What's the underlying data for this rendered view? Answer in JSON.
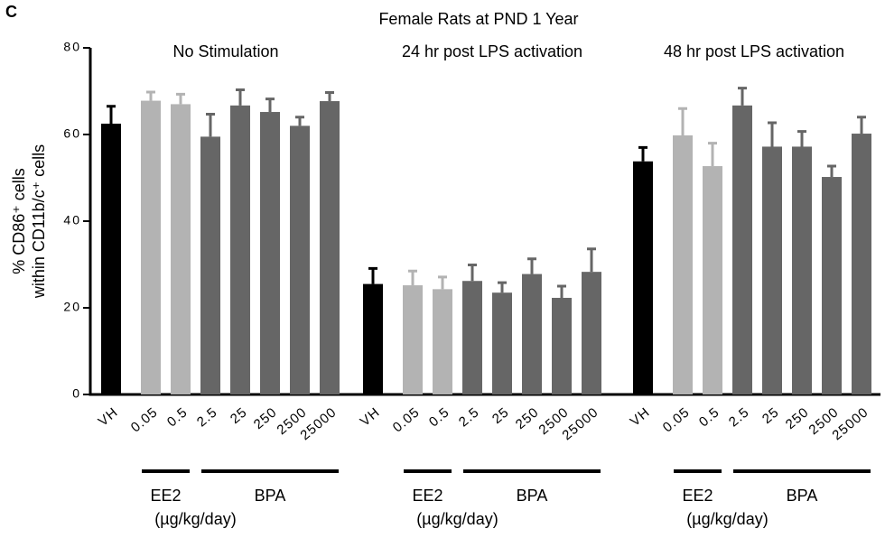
{
  "chart_data": {
    "type": "bar",
    "panel_label": "C",
    "title": "Female Rats at PND 1 Year",
    "y_label": [
      "% CD86⁺ cells",
      "within CD11b/c⁺ cells"
    ],
    "ylim": [
      0,
      80
    ],
    "yticks": [
      0,
      20,
      40,
      60,
      80
    ],
    "colors": [
      "#000000",
      "#b3b3b3",
      "#b3b3b3",
      "#666666",
      "#666666",
      "#666666",
      "#666666",
      "#666666"
    ],
    "categories": [
      "VH",
      "0.05",
      "0.5",
      "2.5",
      "25",
      "250",
      "2500",
      "25000"
    ],
    "bracket_labels": [
      "EE2",
      "BPA"
    ],
    "unit": "(µg/kg/day)",
    "groups": [
      {
        "title": "No Stimulation",
        "values": [
          62.5,
          67.8,
          67,
          59.5,
          66.7,
          65.2,
          62,
          67.7
        ],
        "errors": [
          4,
          2,
          2.3,
          5.2,
          3.6,
          3,
          2,
          2
        ]
      },
      {
        "title": "24 hr post LPS activation",
        "values": [
          25.5,
          25.2,
          24.3,
          26.2,
          23.5,
          27.8,
          22.3,
          28.3
        ],
        "errors": [
          3.6,
          3.3,
          2.8,
          3.7,
          2.3,
          3.5,
          2.7,
          5.3
        ]
      },
      {
        "title": "48 hr post LPS activation",
        "values": [
          53.8,
          59.8,
          52.7,
          66.7,
          57.2,
          57.2,
          50.2,
          60.2
        ],
        "errors": [
          3.2,
          6.2,
          5.3,
          4,
          5.5,
          3.5,
          2.5,
          3.8
        ]
      }
    ]
  }
}
